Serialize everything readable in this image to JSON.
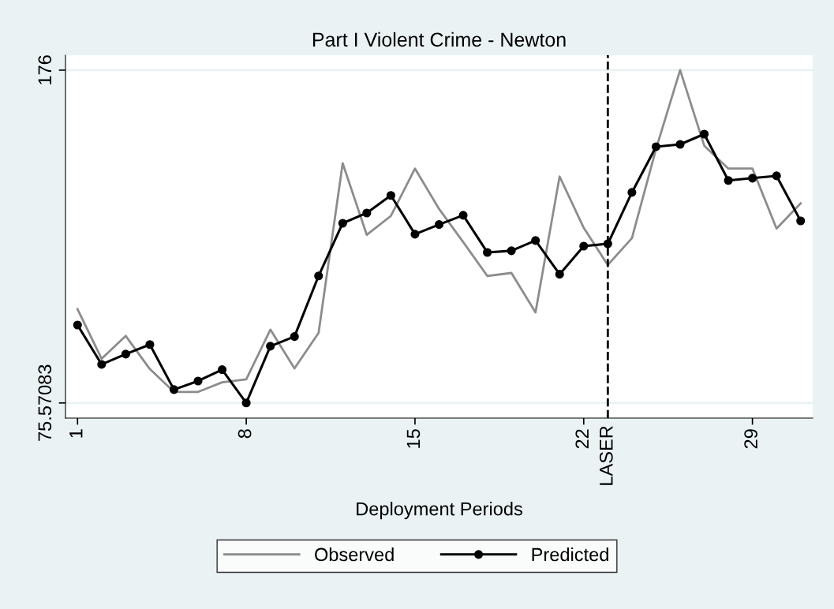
{
  "chart_data": {
    "type": "line",
    "title": "Part I Violent Crime - Newton",
    "xlabel": "Deployment Periods",
    "x": [
      1,
      2,
      3,
      4,
      5,
      6,
      7,
      8,
      9,
      10,
      11,
      12,
      13,
      14,
      15,
      16,
      17,
      18,
      19,
      20,
      21,
      22,
      23,
      24,
      25,
      26,
      27,
      28,
      29,
      30,
      31
    ],
    "series": [
      {
        "name": "Observed",
        "color": "#8c8c8c",
        "marker": "none",
        "values": [
          103.9,
          88.9,
          95.8,
          85.8,
          78.9,
          78.9,
          81.8,
          82.7,
          97.7,
          86.0,
          96.7,
          147.9,
          126.3,
          132.0,
          146.3,
          134.1,
          124.1,
          113.9,
          114.8,
          102.9,
          143.9,
          128.4,
          117.2,
          125.3,
          152.2,
          176,
          153.2,
          146.3,
          146.3,
          128.2,
          135.8
        ]
      },
      {
        "name": "Predicted",
        "color": "#000000",
        "marker": "circle",
        "values": [
          99.1,
          87.2,
          90.3,
          93.2,
          79.6,
          82.2,
          85.6,
          75.57083,
          92.7,
          95.6,
          113.9,
          129.8,
          132.9,
          138.2,
          126.5,
          129.4,
          132.2,
          121.0,
          121.5,
          124.6,
          114.4,
          122.9,
          123.6,
          139.1,
          152.9,
          153.6,
          156.7,
          142.7,
          143.4,
          144.1,
          130.5
        ]
      }
    ],
    "xlim": [
      0.5,
      31.5
    ],
    "xticks": [
      1,
      8,
      15,
      22,
      29
    ],
    "ylim": [
      71,
      180.5
    ],
    "yticks": [
      75.57083,
      176
    ],
    "ref_lines": [
      {
        "axis": "x",
        "value": 23,
        "label": "LASER",
        "color": "#000000",
        "line_style": "dashed"
      }
    ],
    "grid": "y",
    "legend": "bottom",
    "line_style": "solid"
  }
}
